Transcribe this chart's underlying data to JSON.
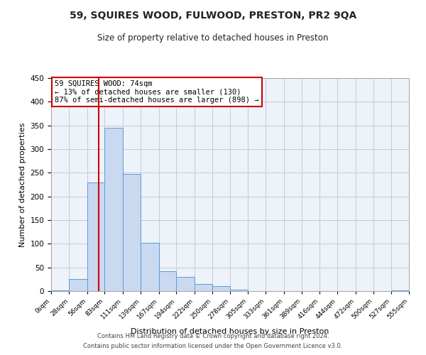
{
  "title": "59, SQUIRES WOOD, FULWOOD, PRESTON, PR2 9QA",
  "subtitle": "Size of property relative to detached houses in Preston",
  "xlabel": "Distribution of detached houses by size in Preston",
  "ylabel": "Number of detached properties",
  "bin_edges": [
    0,
    28,
    56,
    83,
    111,
    139,
    167,
    194,
    222,
    250,
    278,
    305,
    333,
    361,
    389,
    416,
    444,
    472,
    500,
    527,
    555
  ],
  "bin_labels": [
    "0sqm",
    "28sqm",
    "56sqm",
    "83sqm",
    "111sqm",
    "139sqm",
    "167sqm",
    "194sqm",
    "222sqm",
    "250sqm",
    "278sqm",
    "305sqm",
    "333sqm",
    "361sqm",
    "389sqm",
    "416sqm",
    "444sqm",
    "472sqm",
    "500sqm",
    "527sqm",
    "555sqm"
  ],
  "counts": [
    2,
    25,
    230,
    345,
    248,
    102,
    42,
    30,
    15,
    10,
    3,
    0,
    0,
    0,
    0,
    0,
    0,
    0,
    0,
    2
  ],
  "bar_facecolor": "#c9d9f0",
  "bar_edgecolor": "#5b9bd5",
  "grid_color": "#c0ccdd",
  "background_color": "#eef2f9",
  "property_line_x": 74,
  "property_line_color": "#cc0000",
  "annotation_text": "59 SQUIRES WOOD: 74sqm\n← 13% of detached houses are smaller (130)\n87% of semi-detached houses are larger (898) →",
  "annotation_box_edgecolor": "#cc0000",
  "ylim": [
    0,
    450
  ],
  "yticks": [
    0,
    50,
    100,
    150,
    200,
    250,
    300,
    350,
    400,
    450
  ],
  "footer_line1": "Contains HM Land Registry data © Crown copyright and database right 2024.",
  "footer_line2": "Contains public sector information licensed under the Open Government Licence v3.0."
}
